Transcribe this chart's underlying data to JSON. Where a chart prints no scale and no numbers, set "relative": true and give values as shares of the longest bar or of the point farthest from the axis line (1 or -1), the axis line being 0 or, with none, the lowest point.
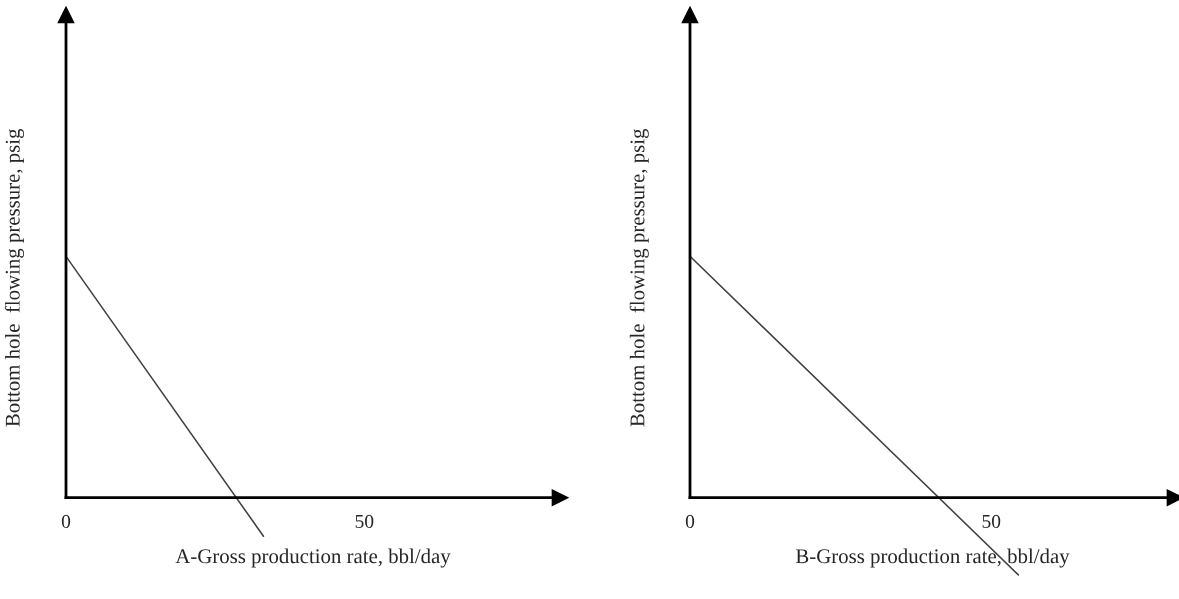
{
  "chart_data": [
    {
      "type": "line",
      "relative": true,
      "xlabel": "A-Gross production rate, bbl/day",
      "ylabel": "Bottom hole  flowing pressure, psig",
      "xlim": [
        0,
        82.8
      ],
      "xticks": [
        0,
        50
      ],
      "tick_labels": "x",
      "x": [
        0,
        33.1
      ],
      "series": [
        {
          "color": "#404040",
          "values": [
            1,
            -0.16
          ]
        }
      ]
    },
    {
      "type": "line",
      "relative": true,
      "xlabel": "B-Gross production rate, bbl/day",
      "ylabel": "Bottom hole  flowing pressure, psig",
      "xlim": [
        0,
        80.5
      ],
      "xticks": [
        0,
        50
      ],
      "tick_labels": "x",
      "x": [
        0,
        54.5
      ],
      "series": [
        {
          "color": "#404040",
          "values": [
            1,
            -0.32
          ]
        }
      ]
    }
  ]
}
